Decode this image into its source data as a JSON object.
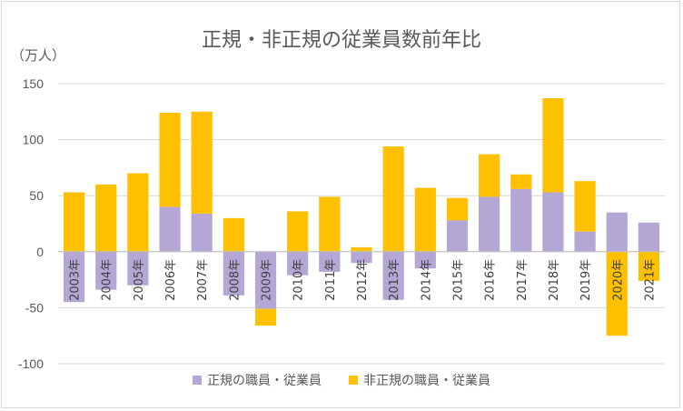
{
  "chart_data": {
    "type": "bar",
    "stacked": true,
    "title": "正規・非正規の従業員数前年比",
    "ylabel": "（万人）",
    "xlabel": "",
    "ylim": [
      -100,
      150
    ],
    "yticks": [
      150,
      100,
      50,
      0,
      -50,
      -100
    ],
    "grid": true,
    "legend_position": "bottom",
    "categories": [
      "2003年",
      "2004年",
      "2005年",
      "2006年",
      "2007年",
      "2008年",
      "2009年",
      "2010年",
      "2011年",
      "2012年",
      "2013年",
      "2014年",
      "2015年",
      "2016年",
      "2017年",
      "2018年",
      "2019年",
      "2020年",
      "2021年"
    ],
    "series": [
      {
        "name": "正規の職員・従業員",
        "color": "#b4a7d6",
        "values": [
          -45,
          -34,
          -30,
          40,
          34,
          -39,
          -51,
          -21,
          -18,
          -10,
          -43,
          -15,
          28,
          49,
          56,
          53,
          18,
          35,
          26
        ]
      },
      {
        "name": "非正規の職員・従業員",
        "color": "#ffc000",
        "values": [
          53,
          60,
          70,
          84,
          91,
          30,
          -15,
          36,
          49,
          4,
          94,
          57,
          20,
          38,
          13,
          84,
          45,
          -75,
          -26
        ]
      }
    ]
  }
}
